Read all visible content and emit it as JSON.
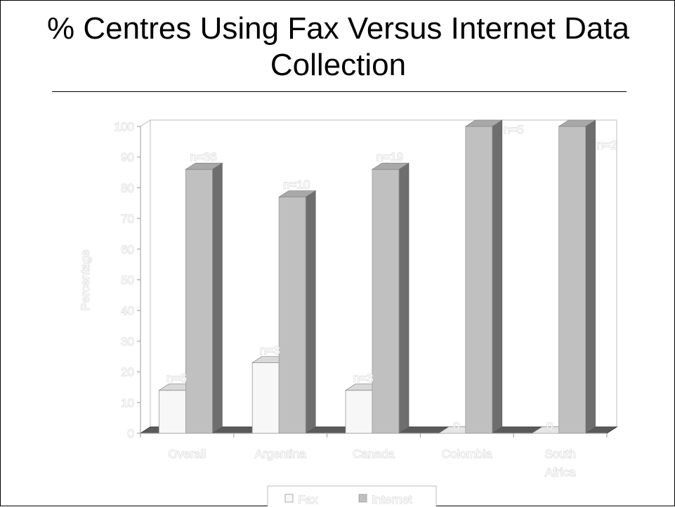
{
  "slide": {
    "title": "% Centres Using Fax Versus Internet Data\nCollection"
  },
  "chart_data": {
    "type": "bar",
    "title": "",
    "ylabel": "Percentage",
    "xlabel": "",
    "ylim": [
      0,
      100
    ],
    "yticks": [
      0,
      10,
      20,
      30,
      40,
      50,
      60,
      70,
      80,
      90,
      100
    ],
    "categories": [
      "Overall",
      "Argentina",
      "Canada",
      "Colombia",
      "South\nAfrica"
    ],
    "series": [
      {
        "name": "Fax",
        "values": [
          14,
          23,
          14,
          0,
          0
        ],
        "labels": [
          "n=6",
          "n=3",
          "n=3",
          "0",
          "0"
        ],
        "color": "#f7f7f7"
      },
      {
        "name": "Internet",
        "values": [
          86,
          77,
          86,
          100,
          100
        ],
        "labels": [
          "n=36",
          "n=10",
          "n=19",
          "n=5",
          "n=2"
        ],
        "color": "#c0c0c0"
      }
    ],
    "legend": {
      "position": "bottom",
      "entries": [
        "Fax",
        "Internet"
      ]
    },
    "grid": false,
    "style": "3d-clustered-column"
  }
}
